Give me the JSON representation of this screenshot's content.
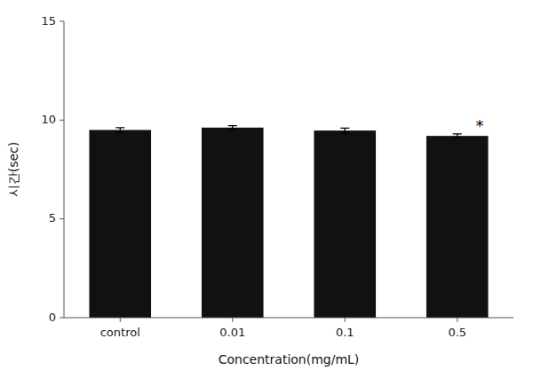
{
  "chart_data": {
    "type": "bar",
    "categories": [
      "control",
      "0.01",
      "0.1",
      "0.5"
    ],
    "values": [
      9.5,
      9.62,
      9.47,
      9.2
    ],
    "errors": [
      0.12,
      0.1,
      0.12,
      0.1
    ],
    "color": "#111111",
    "xlabel": "Concentration(mg/mL)",
    "ylabel": "시간(sec)",
    "ylim": [
      0,
      15
    ],
    "yticks": [
      0,
      5,
      10,
      15
    ],
    "grid": false,
    "annotations": [
      {
        "category": "0.5",
        "text": "*"
      }
    ]
  }
}
